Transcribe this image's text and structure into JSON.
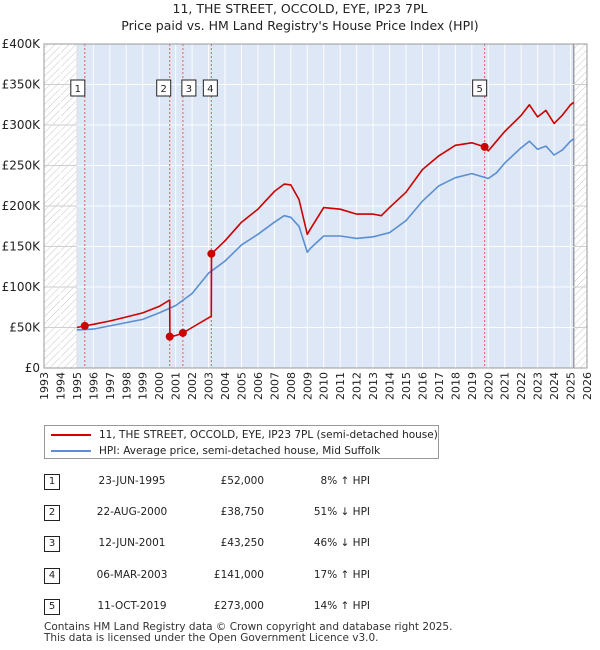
{
  "chart_data": {
    "type": "line",
    "title": "11, THE STREET, OCCOLD, EYE, IP23 7PL",
    "subtitle": "Price paid vs. HM Land Registry's House Price Index (HPI)",
    "xlim": [
      1993,
      2026
    ],
    "ylim": [
      0,
      400000
    ],
    "x_ticks": [
      "1993",
      "1994",
      "1995",
      "1996",
      "1997",
      "1998",
      "1999",
      "2000",
      "2001",
      "2002",
      "2003",
      "2004",
      "2005",
      "2006",
      "2007",
      "2008",
      "2009",
      "2010",
      "2011",
      "2012",
      "2013",
      "2014",
      "2015",
      "2016",
      "2017",
      "2018",
      "2019",
      "2020",
      "2021",
      "2022",
      "2023",
      "2024",
      "2025",
      "2026"
    ],
    "y_ticks": [
      {
        "value": 0,
        "label": "£0"
      },
      {
        "value": 50000,
        "label": "£50K"
      },
      {
        "value": 100000,
        "label": "£100K"
      },
      {
        "value": 150000,
        "label": "£150K"
      },
      {
        "value": 200000,
        "label": "£200K"
      },
      {
        "value": 250000,
        "label": "£250K"
      },
      {
        "value": 300000,
        "label": "£300K"
      },
      {
        "value": 350000,
        "label": "£350K"
      },
      {
        "value": 400000,
        "label": "£400K"
      }
    ],
    "data_start": 1995.0,
    "data_end": 2025.2,
    "grid": true,
    "series": [
      {
        "name": "11, THE STREET, OCCOLD, EYE, IP23 7PL (semi-detached house)",
        "color": "#cc0000",
        "x": [
          1995.0,
          1995.48,
          1996,
          1997,
          1998,
          1999,
          2000,
          2000.64,
          2000.65,
          2001.0,
          2001.44,
          2002,
          2003.17,
          2003.18,
          2004,
          2005,
          2006,
          2007,
          2007.6,
          2008,
          2008.5,
          2009,
          2009.2,
          2010,
          2011,
          2012,
          2013,
          2013.5,
          2014,
          2015,
          2016,
          2017,
          2018,
          2019,
          2019.78,
          2020,
          2020.5,
          2021,
          2022,
          2022.5,
          2023,
          2023.5,
          2024,
          2024.5,
          2025,
          2025.2
        ],
        "y": [
          50000,
          52000,
          54000,
          58000,
          63000,
          68000,
          76000,
          84000,
          38750,
          40000,
          43250,
          50000,
          64000,
          141000,
          157000,
          180000,
          196000,
          218000,
          227000,
          226000,
          208000,
          165000,
          172000,
          198000,
          196000,
          190000,
          190000,
          188000,
          198000,
          217000,
          245000,
          262000,
          275000,
          278000,
          273000,
          268000,
          280000,
          292000,
          312000,
          325000,
          310000,
          318000,
          302000,
          312000,
          325000,
          328000
        ]
      },
      {
        "name": "HPI: Average price, semi-detached house, Mid Suffolk",
        "color": "#5b8fd1",
        "x": [
          1995.0,
          1996,
          1997,
          1998,
          1999,
          2000,
          2001,
          2002,
          2003,
          2004,
          2005,
          2006,
          2007,
          2007.6,
          2008,
          2008.5,
          2009,
          2009.2,
          2010,
          2011,
          2012,
          2013,
          2014,
          2015,
          2016,
          2017,
          2018,
          2019,
          2020,
          2020.5,
          2021,
          2022,
          2022.5,
          2023,
          2023.5,
          2024,
          2024.5,
          2025,
          2025.2
        ],
        "y": [
          47000,
          48000,
          52000,
          56000,
          60000,
          68000,
          77000,
          92000,
          117000,
          132000,
          152000,
          165000,
          180000,
          188000,
          186000,
          175000,
          143000,
          148000,
          163000,
          163000,
          160000,
          162000,
          167000,
          182000,
          206000,
          225000,
          235000,
          240000,
          234000,
          241000,
          253000,
          272000,
          280000,
          270000,
          274000,
          263000,
          269000,
          280000,
          283000
        ]
      }
    ],
    "sales": [
      {
        "label": "1",
        "x": 1995.48,
        "price": 52000
      },
      {
        "label": "2",
        "x": 2000.64,
        "price": 38750
      },
      {
        "label": "3",
        "x": 2001.44,
        "price": 43250
      },
      {
        "label": "4",
        "x": 2003.17,
        "price": 141000
      },
      {
        "label": "5",
        "x": 2019.78,
        "price": 273000
      }
    ]
  },
  "legend": {
    "property": "11, THE STREET, OCCOLD, EYE, IP23 7PL (semi-detached house)",
    "hpi": "HPI: Average price, semi-detached house, Mid Suffolk"
  },
  "table": [
    {
      "num": "1",
      "date": "23-JUN-1995",
      "price": "£52,000",
      "hpi": "8% ↑ HPI"
    },
    {
      "num": "2",
      "date": "22-AUG-2000",
      "price": "£38,750",
      "hpi": "51% ↓ HPI"
    },
    {
      "num": "3",
      "date": "12-JUN-2001",
      "price": "£43,250",
      "hpi": "46% ↓ HPI"
    },
    {
      "num": "4",
      "date": "06-MAR-2003",
      "price": "£141,000",
      "hpi": "17% ↑ HPI"
    },
    {
      "num": "5",
      "date": "11-OCT-2019",
      "price": "£273,000",
      "hpi": "14% ↑ HPI"
    }
  ],
  "footer": {
    "line1": "Contains HM Land Registry data © Crown copyright and database right 2025.",
    "line2": "This data is licensed under the Open Government Licence v3.0."
  }
}
